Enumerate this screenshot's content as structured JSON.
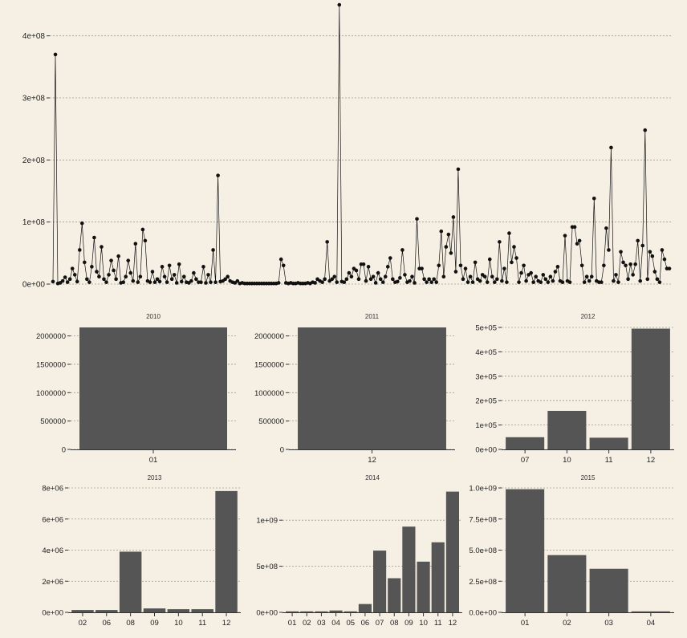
{
  "chart_data": [
    {
      "type": "line",
      "title": "",
      "xlabel": "",
      "ylabel": "",
      "ylim": [
        0,
        450000000
      ],
      "y_ticks": [
        0,
        100000000,
        200000000,
        300000000,
        400000000
      ],
      "y_tick_labels": [
        "0e+00",
        "1e+08",
        "2e+08",
        "3e+08",
        "4e+08"
      ],
      "grid": true,
      "markers": true,
      "y": [
        4000000,
        370000000,
        1000000,
        2000000,
        5000000,
        11000000,
        3000000,
        8000000,
        25000000,
        15000000,
        4000000,
        55000000,
        98000000,
        35000000,
        8000000,
        3000000,
        28000000,
        75000000,
        20000000,
        12000000,
        60000000,
        8000000,
        3000000,
        15000000,
        38000000,
        22000000,
        8000000,
        45000000,
        2000000,
        3000000,
        12000000,
        38000000,
        18000000,
        5000000,
        65000000,
        3000000,
        12000000,
        88000000,
        70000000,
        5000000,
        3000000,
        20000000,
        3000000,
        8000000,
        4000000,
        28000000,
        12000000,
        3000000,
        30000000,
        8000000,
        15000000,
        2000000,
        32000000,
        4000000,
        12000000,
        3000000,
        2000000,
        5000000,
        18000000,
        8000000,
        3000000,
        3000000,
        28000000,
        2000000,
        15000000,
        3000000,
        55000000,
        3000000,
        175000000,
        4000000,
        5000000,
        8000000,
        12000000,
        5000000,
        3000000,
        2000000,
        5000000,
        1000000,
        2000000,
        1000000,
        1000000,
        1000000,
        1000000,
        1000000,
        1000000,
        1000000,
        1000000,
        1000000,
        1000000,
        1000000,
        1000000,
        1000000,
        1000000,
        2000000,
        40000000,
        30000000,
        2000000,
        1000000,
        2000000,
        1000000,
        1000000,
        2000000,
        1000000,
        1000000,
        1000000,
        2000000,
        1000000,
        3000000,
        2000000,
        8000000,
        5000000,
        3000000,
        8000000,
        68000000,
        5000000,
        8000000,
        12000000,
        3000000,
        450000000,
        4000000,
        3000000,
        8000000,
        18000000,
        12000000,
        25000000,
        22000000,
        8000000,
        32000000,
        32000000,
        5000000,
        28000000,
        8000000,
        12000000,
        2000000,
        18000000,
        8000000,
        3000000,
        12000000,
        28000000,
        42000000,
        8000000,
        3000000,
        4000000,
        10000000,
        55000000,
        15000000,
        3000000,
        5000000,
        12000000,
        2000000,
        105000000,
        25000000,
        25000000,
        8000000,
        3000000,
        8000000,
        3000000,
        8000000,
        3000000,
        30000000,
        85000000,
        12000000,
        60000000,
        80000000,
        50000000,
        108000000,
        20000000,
        185000000,
        30000000,
        8000000,
        25000000,
        3000000,
        12000000,
        3000000,
        35000000,
        8000000,
        5000000,
        15000000,
        12000000,
        3000000,
        40000000,
        12000000,
        3000000,
        8000000,
        68000000,
        5000000,
        25000000,
        3000000,
        82000000,
        35000000,
        60000000,
        42000000,
        3000000,
        18000000,
        30000000,
        5000000,
        15000000,
        18000000,
        3000000,
        12000000,
        5000000,
        3000000,
        15000000,
        8000000,
        3000000,
        12000000,
        5000000,
        20000000,
        28000000,
        5000000,
        3000000,
        78000000,
        5000000,
        3000000,
        92000000,
        92000000,
        65000000,
        70000000,
        30000000,
        3000000,
        12000000,
        5000000,
        12000000,
        138000000,
        5000000,
        3000000,
        3000000,
        30000000,
        90000000,
        55000000,
        220000000,
        5000000,
        15000000,
        3000000,
        52000000,
        35000000,
        30000000,
        8000000,
        32000000,
        15000000,
        32000000,
        70000000,
        5000000,
        62000000,
        248000000,
        8000000,
        52000000,
        45000000,
        20000000,
        8000000,
        3000000,
        55000000,
        40000000,
        25000000,
        25000000
      ]
    },
    {
      "type": "bar",
      "title": "2010",
      "categories": [
        "01"
      ],
      "values": [
        2150000
      ],
      "ylim": [
        0,
        2150000
      ],
      "y_ticks": [
        0,
        500000,
        1000000,
        1500000,
        2000000
      ],
      "y_tick_labels": [
        "0",
        "500000",
        "1000000",
        "1500000",
        "2000000"
      ],
      "grid": true
    },
    {
      "type": "bar",
      "title": "2011",
      "categories": [
        "12"
      ],
      "values": [
        2150000
      ],
      "ylim": [
        0,
        2150000
      ],
      "y_ticks": [
        0,
        500000,
        1000000,
        1500000,
        2000000
      ],
      "y_tick_labels": [
        "0",
        "500000",
        "1000000",
        "1500000",
        "2000000"
      ],
      "grid": true
    },
    {
      "type": "bar",
      "title": "2012",
      "categories": [
        "07",
        "10",
        "11",
        "12"
      ],
      "values": [
        50000,
        158000,
        48000,
        495000
      ],
      "ylim": [
        0,
        500000
      ],
      "y_ticks": [
        0,
        100000,
        200000,
        300000,
        400000,
        500000
      ],
      "y_tick_labels": [
        "0e+00",
        "1e+05",
        "2e+05",
        "3e+05",
        "4e+05",
        "5e+05"
      ],
      "grid": true
    },
    {
      "type": "bar",
      "title": "2013",
      "categories": [
        "02",
        "06",
        "08",
        "09",
        "10",
        "11",
        "12"
      ],
      "values": [
        150000,
        150000,
        3900000,
        250000,
        200000,
        200000,
        7800000
      ],
      "ylim": [
        0,
        8000000
      ],
      "y_ticks": [
        0,
        2000000,
        4000000,
        6000000,
        8000000
      ],
      "y_tick_labels": [
        "0e+00",
        "2e+06",
        "4e+06",
        "6e+06",
        "8e+06"
      ],
      "grid": true
    },
    {
      "type": "bar",
      "title": "2014",
      "categories": [
        "01",
        "02",
        "03",
        "04",
        "05",
        "06",
        "07",
        "08",
        "09",
        "10",
        "11",
        "12"
      ],
      "values": [
        5000000,
        10000000,
        5000000,
        20000000,
        5000000,
        90000000,
        670000000,
        370000000,
        930000000,
        550000000,
        760000000,
        1310000000
      ],
      "ylim": [
        0,
        1350000000
      ],
      "y_ticks": [
        0,
        500000000,
        1000000000
      ],
      "y_tick_labels": [
        "0e+00",
        "5e+08",
        "1e+09"
      ],
      "grid": true
    },
    {
      "type": "bar",
      "title": "2015",
      "categories": [
        "01",
        "02",
        "03",
        "04"
      ],
      "values": [
        990000000,
        460000000,
        350000000,
        5000000
      ],
      "ylim": [
        0,
        1000000000
      ],
      "y_ticks": [
        0,
        250000000,
        500000000,
        750000000,
        1000000000
      ],
      "y_tick_labels": [
        "0.0e+00",
        "2.5e+08",
        "5.0e+08",
        "7.5e+08",
        "1.0e+09"
      ],
      "grid": true
    }
  ],
  "colors": {
    "background": "#f6f0e4",
    "bar": "#555555",
    "line": "#111111",
    "grid": "#9a9a8e"
  }
}
